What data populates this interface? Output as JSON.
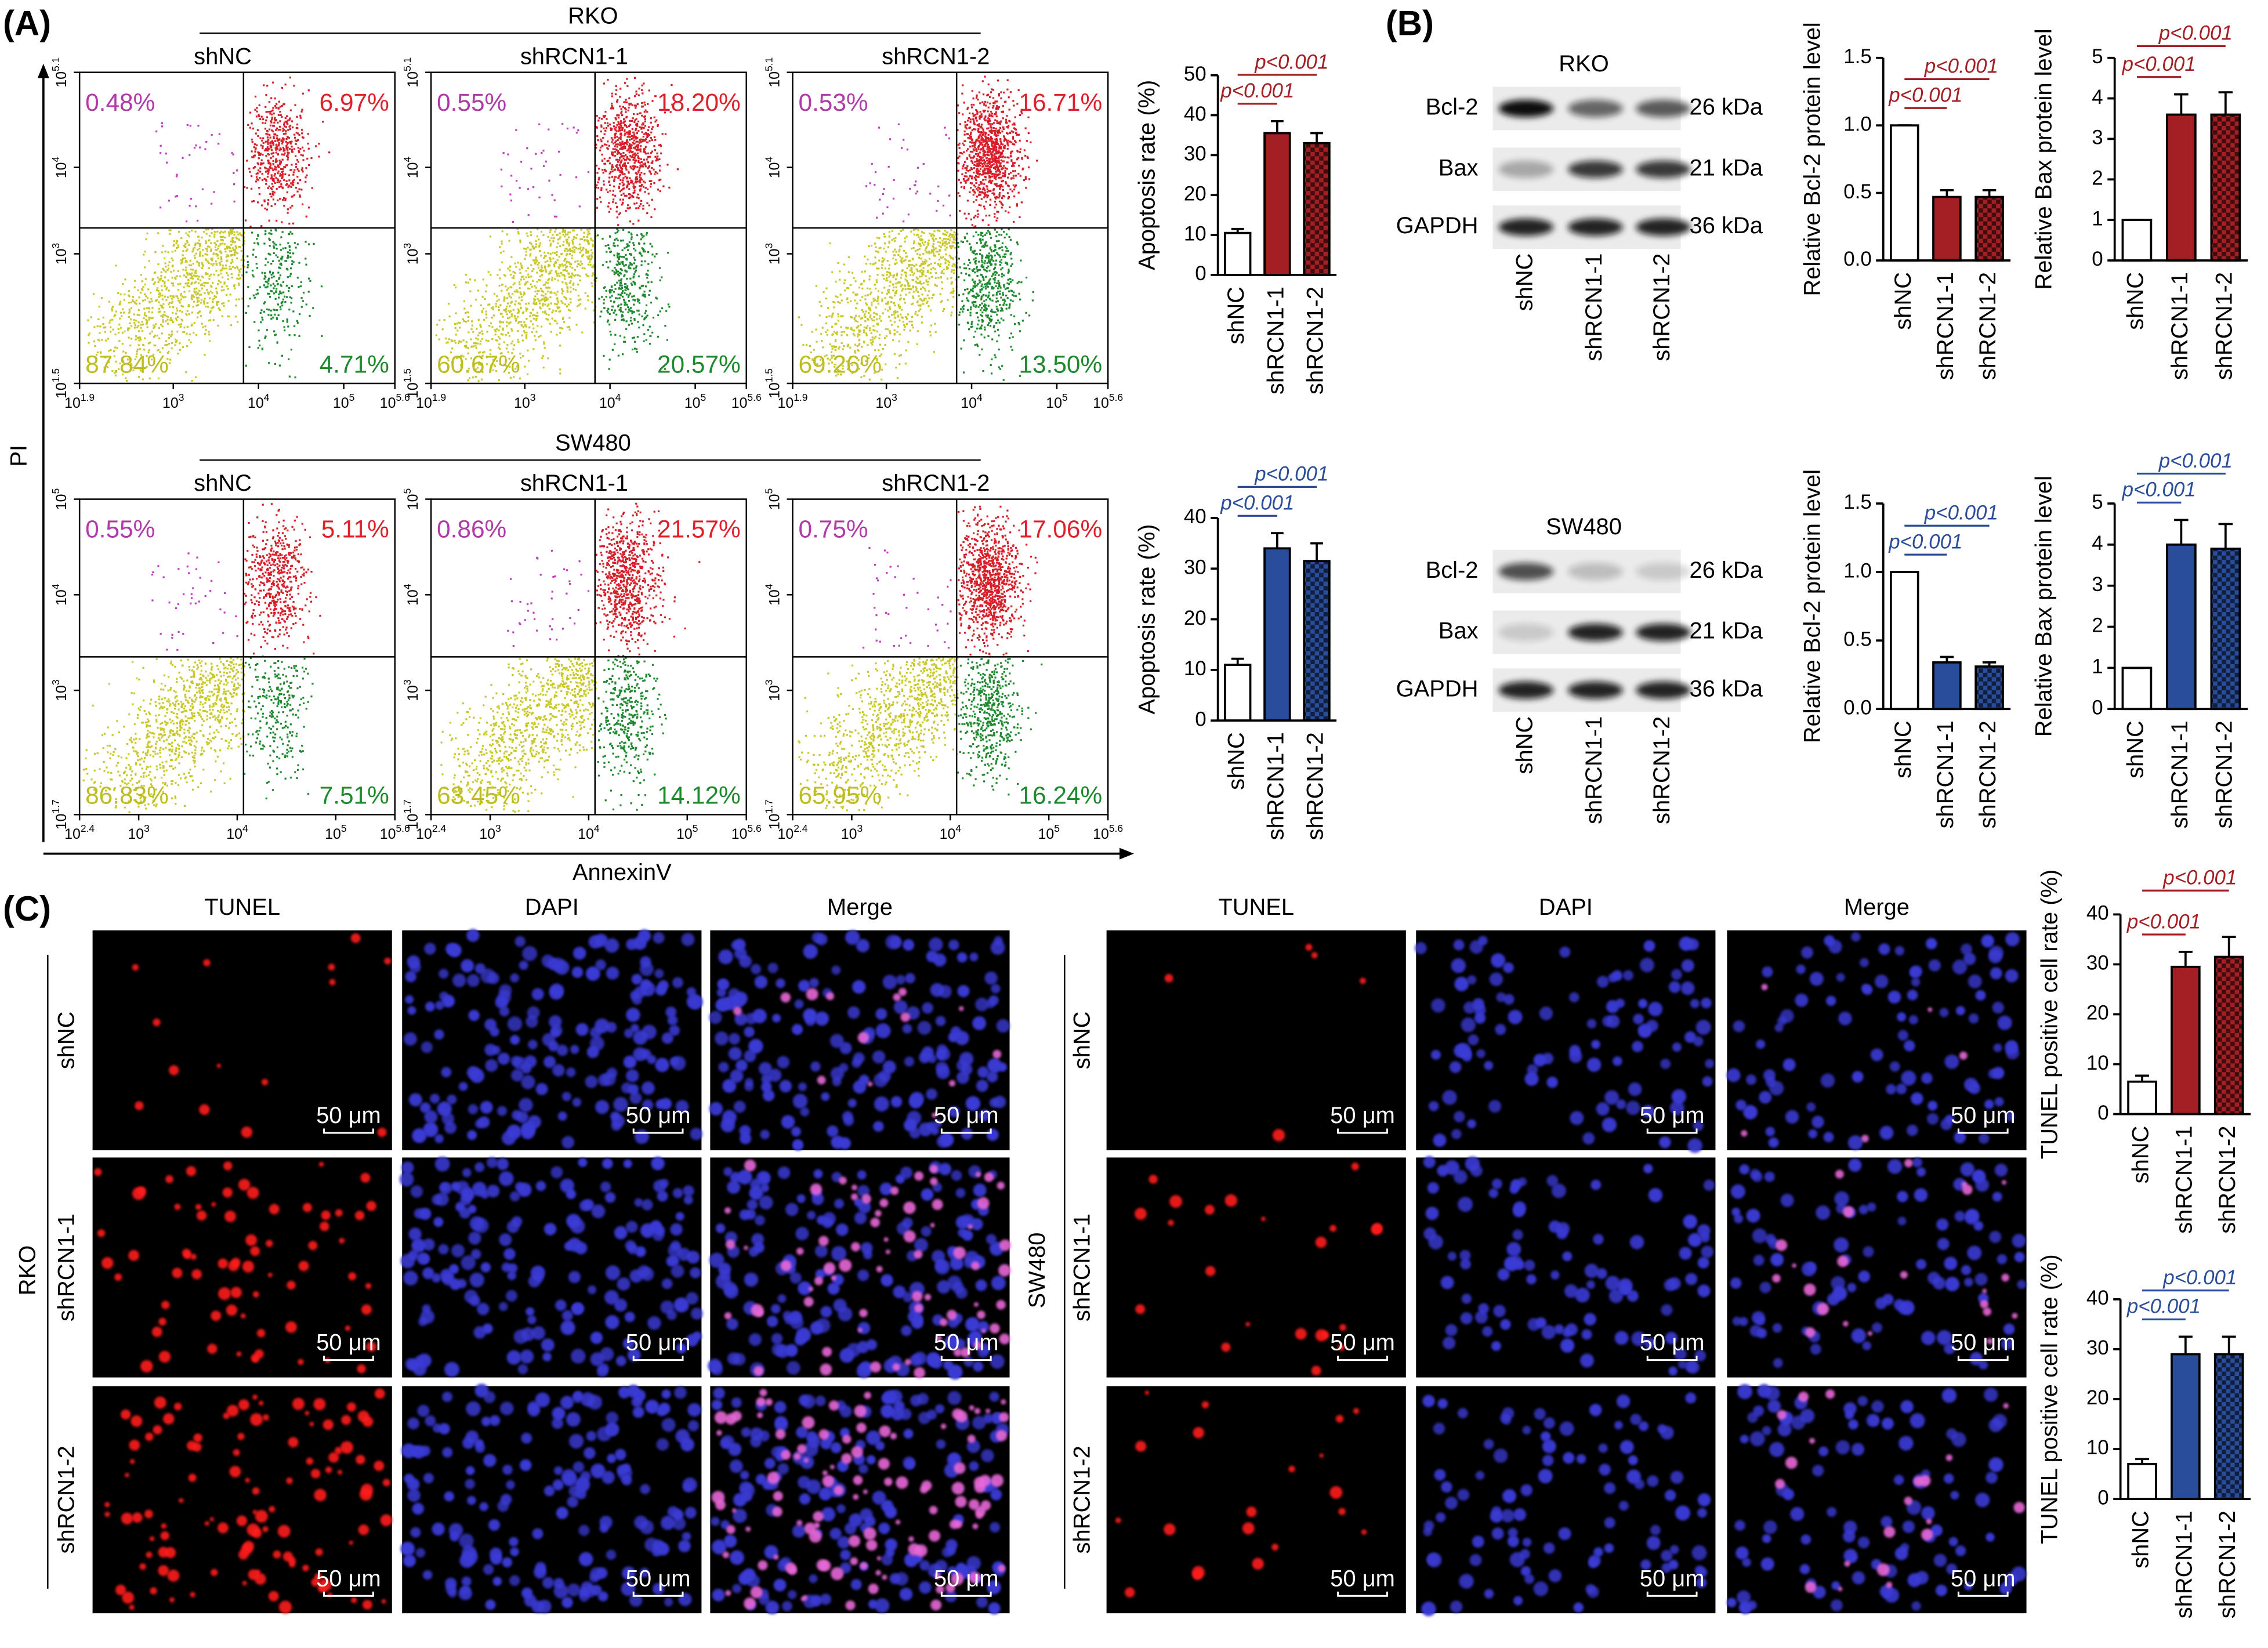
{
  "panel_labels": [
    "(A)",
    "(B)",
    "(C)"
  ],
  "flow": {
    "y_axis_label": "PI",
    "x_axis_label": "AnnexinV",
    "tick_base": "10",
    "groups": [
      {
        "title": "RKO",
        "plots": [
          {
            "title": "shNC",
            "quadrants": [
              "0.48%",
              "6.97%",
              "87.84%",
              "4.71%"
            ],
            "xexp": [
              1.9,
              3,
              4,
              5,
              5.6
            ],
            "yexp": [
              1.5,
              3,
              4,
              5.1
            ]
          },
          {
            "title": "shRCN1-1",
            "quadrants": [
              "0.55%",
              "18.20%",
              "60.67%",
              "20.57%"
            ],
            "xexp": [
              1.9,
              3,
              4,
              5,
              5.6
            ],
            "yexp": [
              1.5,
              3,
              4,
              5.1
            ]
          },
          {
            "title": "shRCN1-2",
            "quadrants": [
              "0.53%",
              "16.71%",
              "69.26%",
              "13.50%"
            ],
            "xexp": [
              1.9,
              3,
              4,
              5,
              5.6
            ],
            "yexp": [
              1.5,
              3,
              4,
              5.1
            ]
          }
        ]
      },
      {
        "title": "SW480",
        "plots": [
          {
            "title": "shNC",
            "quadrants": [
              "0.55%",
              "5.11%",
              "86.83%",
              "7.51%"
            ],
            "xexp": [
              2.4,
              3,
              4,
              5,
              5.6
            ],
            "yexp": [
              1.7,
              3,
              4,
              5
            ]
          },
          {
            "title": "shRCN1-1",
            "quadrants": [
              "0.86%",
              "21.57%",
              "63.45%",
              "14.12%"
            ],
            "xexp": [
              2.4,
              3,
              4,
              5,
              5.6
            ],
            "yexp": [
              1.7,
              3,
              4,
              5
            ]
          },
          {
            "title": "shRCN1-2",
            "quadrants": [
              "0.75%",
              "17.06%",
              "65.95%",
              "16.24%"
            ],
            "xexp": [
              2.4,
              3,
              4,
              5,
              5.6
            ],
            "yexp": [
              1.7,
              3,
              4,
              5
            ]
          }
        ]
      }
    ]
  },
  "western": {
    "groups": [
      {
        "title": "RKO",
        "rows": [
          "Bcl-2",
          "Bax",
          "GAPDH"
        ],
        "sizes": [
          "26 kDa",
          "21 kDa",
          "36 kDa"
        ],
        "lanes": [
          "shNC",
          "shRCN1-1",
          "shRCN1-2"
        ]
      },
      {
        "title": "SW480",
        "rows": [
          "Bcl-2",
          "Bax",
          "GAPDH"
        ],
        "sizes": [
          "26 kDa",
          "21 kDa",
          "36 kDa"
        ],
        "lanes": [
          "shNC",
          "shRCN1-1",
          "shRCN1-2"
        ]
      }
    ]
  },
  "tunel": {
    "groups": [
      {
        "title": "RKO",
        "columns": [
          "TUNEL",
          "DAPI",
          "Merge"
        ],
        "rows": [
          "shNC",
          "shRCN1-1",
          "shRCN1-2"
        ]
      },
      {
        "title": "SW480",
        "columns": [
          "TUNEL",
          "DAPI",
          "Merge"
        ],
        "rows": [
          "shNC",
          "shRCN1-1",
          "shRCN1-2"
        ]
      }
    ],
    "scale_bar": "50 μm"
  },
  "chart_data": [
    {
      "type": "bar",
      "ylabel": "Apoptosis rate (%)",
      "categories": [
        "shNC",
        "shRCN1-1",
        "shRCN1-2"
      ],
      "values": [
        10.5,
        35.5,
        33
      ],
      "errors": [
        1,
        3,
        2.5
      ],
      "colors": [
        "#ffffff",
        "#a31f24",
        "#a31f24"
      ],
      "pattern": [
        false,
        false,
        true
      ],
      "ylim": [
        0,
        50
      ],
      "yticks": [
        0,
        10,
        20,
        30,
        40,
        50
      ],
      "annotations": [
        "p<0.001",
        "p<0.001"
      ],
      "annotation_color": "#a31f24"
    },
    {
      "type": "bar",
      "ylabel": "Apoptosis rate (%)",
      "categories": [
        "shNC",
        "shRCN1-1",
        "shRCN1-2"
      ],
      "values": [
        11,
        34,
        31.5
      ],
      "errors": [
        1.2,
        3,
        3.5
      ],
      "colors": [
        "#ffffff",
        "#2a4d9b",
        "#2a4d9b"
      ],
      "pattern": [
        false,
        false,
        true
      ],
      "ylim": [
        0,
        40
      ],
      "yticks": [
        0,
        10,
        20,
        30,
        40
      ],
      "annotations": [
        "p<0.001",
        "p<0.001"
      ],
      "annotation_color": "#2a4d9b"
    },
    {
      "type": "bar",
      "ylabel": "Relative Bcl-2 protein level",
      "categories": [
        "shNC",
        "shRCN1-1",
        "shRCN1-2"
      ],
      "values": [
        1,
        0.47,
        0.47
      ],
      "errors": [
        0,
        0.05,
        0.05
      ],
      "colors": [
        "#ffffff",
        "#a31f24",
        "#a31f24"
      ],
      "pattern": [
        false,
        false,
        true
      ],
      "ylim": [
        0,
        1.5
      ],
      "yticks": [
        {
          "value": 0,
          "label": "0.0"
        },
        0.5,
        {
          "value": 1,
          "label": "1.0"
        },
        1.5
      ],
      "annotations": [
        "p<0.001",
        "p<0.001"
      ],
      "annotation_color": "#a31f24"
    },
    {
      "type": "bar",
      "ylabel": "Relative Bax protein level",
      "categories": [
        "shNC",
        "shRCN1-1",
        "shRCN1-2"
      ],
      "values": [
        1,
        3.6,
        3.6
      ],
      "errors": [
        0,
        0.5,
        0.55
      ],
      "colors": [
        "#ffffff",
        "#a31f24",
        "#a31f24"
      ],
      "pattern": [
        false,
        false,
        true
      ],
      "ylim": [
        0,
        5
      ],
      "yticks": [
        0,
        1,
        2,
        3,
        4,
        5
      ],
      "annotations": [
        "p<0.001",
        "p<0.001"
      ],
      "annotation_color": "#a31f24"
    },
    {
      "type": "bar",
      "ylabel": "Relative Bcl-2 protein level",
      "categories": [
        "shNC",
        "shRCN1-1",
        "shRCN1-2"
      ],
      "values": [
        1,
        0.34,
        0.31
      ],
      "errors": [
        0,
        0.04,
        0.03
      ],
      "colors": [
        "#ffffff",
        "#2a4d9b",
        "#2a4d9b"
      ],
      "pattern": [
        false,
        false,
        true
      ],
      "ylim": [
        0,
        1.5
      ],
      "yticks": [
        {
          "value": 0,
          "label": "0.0"
        },
        0.5,
        {
          "value": 1,
          "label": "1.0"
        },
        1.5
      ],
      "annotations": [
        "p<0.001",
        "p<0.001"
      ],
      "annotation_color": "#2a4d9b"
    },
    {
      "type": "bar",
      "ylabel": "Relative Bax protein level",
      "categories": [
        "shNC",
        "shRCN1-1",
        "shRCN1-2"
      ],
      "values": [
        1,
        4,
        3.9
      ],
      "errors": [
        0,
        0.6,
        0.6
      ],
      "colors": [
        "#ffffff",
        "#2a4d9b",
        "#2a4d9b"
      ],
      "pattern": [
        false,
        false,
        true
      ],
      "ylim": [
        0,
        5
      ],
      "yticks": [
        0,
        1,
        2,
        3,
        4,
        5
      ],
      "annotations": [
        "p<0.001",
        "p<0.001"
      ],
      "annotation_color": "#2a4d9b"
    },
    {
      "type": "bar",
      "ylabel": "TUNEL positive cell rate (%)",
      "categories": [
        "shNC",
        "shRCN1-1",
        "shRCN1-2"
      ],
      "values": [
        6.5,
        29.5,
        31.5
      ],
      "errors": [
        1.2,
        3,
        4
      ],
      "colors": [
        "#ffffff",
        "#a31f24",
        "#a31f24"
      ],
      "pattern": [
        false,
        false,
        true
      ],
      "ylim": [
        0,
        40
      ],
      "yticks": [
        0,
        10,
        20,
        30,
        40
      ],
      "annotations": [
        "p<0.001",
        "p<0.001"
      ],
      "annotation_color": "#a31f24"
    },
    {
      "type": "bar",
      "ylabel": "TUNEL positive cell rate (%)",
      "categories": [
        "shNC",
        "shRCN1-1",
        "shRCN1-2"
      ],
      "values": [
        7,
        29,
        29
      ],
      "errors": [
        1,
        3.5,
        3.5
      ],
      "colors": [
        "#ffffff",
        "#2a4d9b",
        "#2a4d9b"
      ],
      "pattern": [
        false,
        false,
        true
      ],
      "ylim": [
        0,
        40
      ],
      "yticks": [
        0,
        10,
        20,
        30,
        40
      ],
      "annotations": [
        "p<0.001",
        "p<0.001"
      ],
      "annotation_color": "#2a4d9b"
    }
  ]
}
